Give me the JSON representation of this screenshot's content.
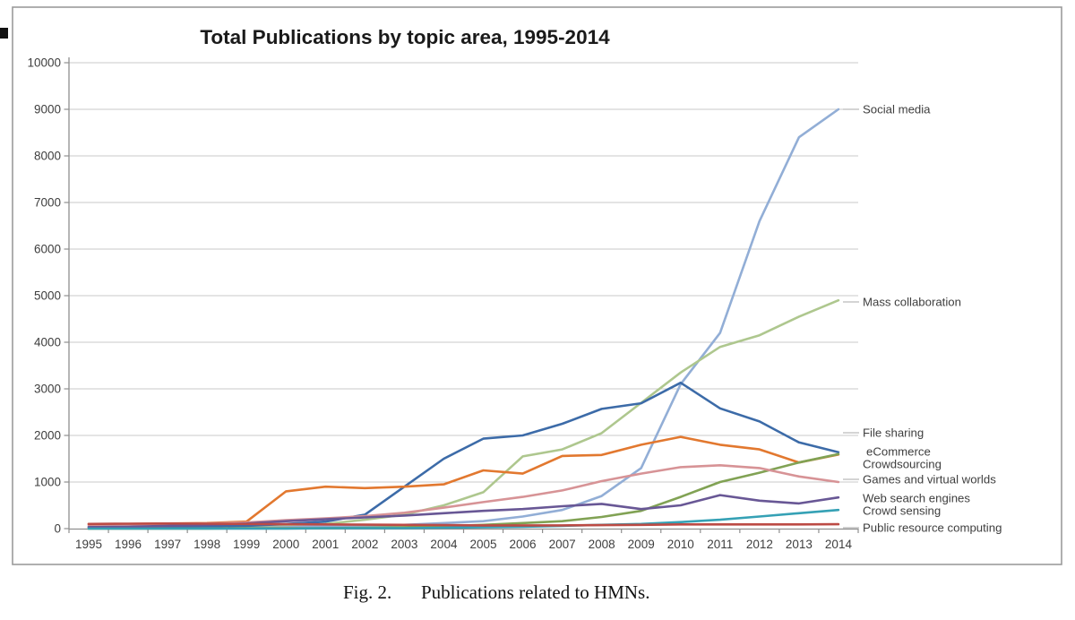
{
  "figure": {
    "caption_fig": "Fig. 2.",
    "caption_text": "Publications related to HMNs."
  },
  "chart_data": {
    "type": "line",
    "title": "Total Publications by topic area, 1995-2014",
    "x": [
      1995,
      1996,
      1997,
      1998,
      1999,
      2000,
      2001,
      2002,
      2003,
      2004,
      2005,
      2006,
      2007,
      2008,
      2009,
      2010,
      2011,
      2012,
      2013,
      2014
    ],
    "xlabel": "",
    "ylabel": "",
    "ylim": [
      0,
      10000
    ],
    "y_step": 1000,
    "grid": true,
    "legend_position": "right-end-labels",
    "colors": {
      "grid": "#c8c8c8",
      "axis": "#8f8f8f",
      "tick_text": "#3e3e3e",
      "title_text": "#1a1a1a",
      "leader": "#a8a8a8",
      "box_border": "#9b9b9b"
    },
    "series": [
      {
        "label": "Social media",
        "color": "#92aed6",
        "label_y": 122,
        "leader": true,
        "values": [
          50,
          30,
          30,
          30,
          30,
          40,
          50,
          60,
          80,
          120,
          160,
          260,
          400,
          700,
          1300,
          3100,
          4200,
          6600,
          8400,
          9000
        ]
      },
      {
        "label": "Mass collaboration",
        "color": "#aec78e",
        "label_y": 337,
        "leader": true,
        "values": [
          0,
          30,
          40,
          50,
          60,
          80,
          100,
          190,
          300,
          500,
          780,
          1550,
          1700,
          2050,
          2700,
          3350,
          3900,
          4150,
          4550,
          4900
        ]
      },
      {
        "label": "File sharing",
        "color": "#3c6ba8",
        "label_y": 483,
        "leader": true,
        "values": [
          30,
          30,
          40,
          50,
          60,
          100,
          150,
          300,
          900,
          1500,
          1930,
          2000,
          2250,
          2570,
          2690,
          3130,
          2580,
          2300,
          1850,
          1640
        ]
      },
      {
        "label": "eCommerce",
        "color": "#e2782f",
        "label_y": 504,
        "leader": false,
        "values": [
          100,
          100,
          110,
          120,
          150,
          800,
          900,
          870,
          900,
          950,
          1250,
          1180,
          1560,
          1580,
          1800,
          1970,
          1800,
          1700,
          1420,
          1590
        ]
      },
      {
        "label": "Crowdsourcing",
        "color": "#81a254",
        "label_y": 518,
        "leader": false,
        "values": [
          0,
          0,
          0,
          0,
          10,
          10,
          10,
          20,
          30,
          50,
          80,
          120,
          160,
          250,
          380,
          680,
          1000,
          1200,
          1420,
          1600
        ]
      },
      {
        "label": "Games and virtual worlds",
        "color": "#d79396",
        "label_y": 535,
        "leader": true,
        "values": [
          80,
          90,
          100,
          110,
          130,
          180,
          220,
          270,
          340,
          450,
          570,
          680,
          820,
          1020,
          1180,
          1320,
          1360,
          1300,
          1120,
          1000
        ]
      },
      {
        "label": "Web search engines",
        "color": "#685795",
        "label_y": 556,
        "leader": false,
        "values": [
          30,
          40,
          60,
          80,
          110,
          160,
          200,
          240,
          280,
          330,
          380,
          420,
          480,
          530,
          420,
          500,
          720,
          600,
          540,
          670
        ]
      },
      {
        "label": "Crowd sensing",
        "color": "#35a1b5",
        "label_y": 570,
        "leader": false,
        "values": [
          0,
          0,
          0,
          0,
          0,
          0,
          10,
          10,
          10,
          20,
          30,
          40,
          60,
          80,
          100,
          140,
          190,
          260,
          330,
          400
        ]
      },
      {
        "label": "Public resource computing",
        "color": "#bc4b45",
        "label_y": 589,
        "leader": true,
        "values": [
          100,
          105,
          110,
          105,
          100,
          95,
          90,
          85,
          80,
          75,
          70,
          70,
          70,
          75,
          80,
          90,
          90,
          90,
          90,
          95
        ]
      }
    ]
  }
}
